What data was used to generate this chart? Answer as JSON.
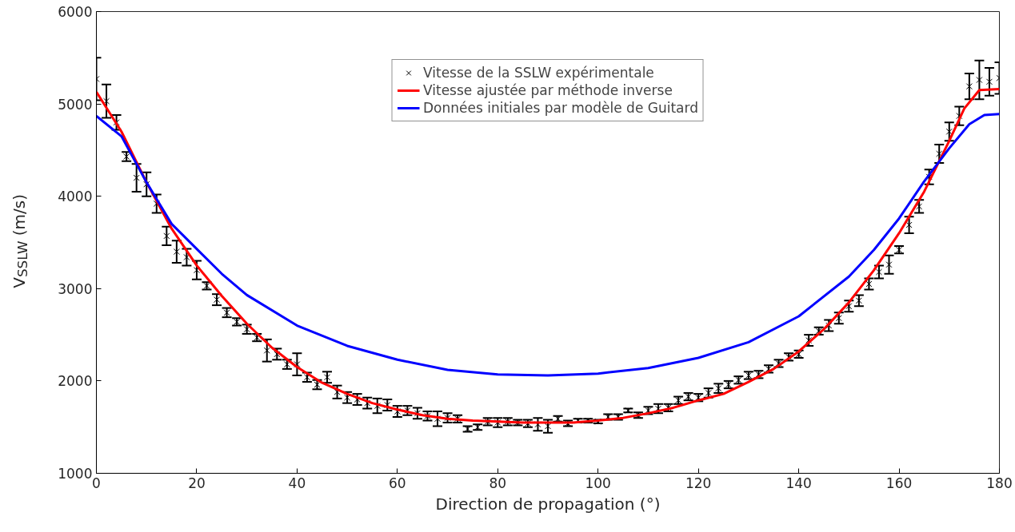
{
  "chart_data": {
    "type": "scatter",
    "xlabel": "Direction de propagation (°)",
    "ylabel": "V$_{SSLW}$ (m/s)",
    "xlim": [
      0,
      180
    ],
    "ylim": [
      1000,
      6000
    ],
    "xticks": [
      0,
      20,
      40,
      60,
      80,
      100,
      120,
      140,
      160,
      180
    ],
    "yticks": [
      1000,
      2000,
      3000,
      4000,
      5000,
      6000
    ],
    "grid": false,
    "legend": "top",
    "series": [
      {
        "name": "Vitesse de la SSLW expérimentale",
        "color": "#000000",
        "marker": "cross",
        "x": [
          0,
          2,
          4,
          6,
          8,
          10,
          12,
          14,
          16,
          18,
          20,
          22,
          24,
          26,
          28,
          30,
          32,
          34,
          36,
          38,
          40,
          42,
          44,
          46,
          48,
          50,
          52,
          54,
          56,
          58,
          60,
          62,
          64,
          66,
          68,
          70,
          72,
          74,
          76,
          78,
          80,
          82,
          84,
          86,
          88,
          90,
          92,
          94,
          96,
          98,
          100,
          102,
          104,
          106,
          108,
          110,
          112,
          114,
          116,
          118,
          120,
          122,
          124,
          126,
          128,
          130,
          132,
          134,
          136,
          138,
          140,
          142,
          144,
          146,
          148,
          150,
          152,
          154,
          156,
          158,
          160,
          162,
          164,
          166,
          168,
          170,
          172,
          174,
          176,
          178,
          180
        ],
        "values": [
          5270,
          5030,
          4800,
          4430,
          4200,
          4130,
          3920,
          3570,
          3400,
          3340,
          3200,
          3030,
          2880,
          2740,
          2640,
          2560,
          2470,
          2330,
          2290,
          2180,
          2180,
          2040,
          1960,
          2040,
          1880,
          1820,
          1800,
          1760,
          1730,
          1740,
          1670,
          1680,
          1650,
          1620,
          1590,
          1600,
          1590,
          1480,
          1500,
          1560,
          1550,
          1560,
          1550,
          1540,
          1530,
          1510,
          1590,
          1540,
          1570,
          1570,
          1560,
          1610,
          1610,
          1680,
          1630,
          1680,
          1700,
          1710,
          1790,
          1830,
          1820,
          1870,
          1920,
          1960,
          2010,
          2060,
          2070,
          2130,
          2190,
          2260,
          2290,
          2440,
          2540,
          2600,
          2680,
          2810,
          2870,
          3050,
          3180,
          3260,
          3420,
          3690,
          3890,
          4210,
          4460,
          4700,
          4870,
          5190,
          5260,
          5240,
          5280
        ],
        "errors": [
          230,
          180,
          80,
          50,
          150,
          130,
          100,
          100,
          120,
          90,
          100,
          40,
          60,
          50,
          40,
          50,
          40,
          120,
          60,
          50,
          120,
          50,
          50,
          60,
          70,
          60,
          60,
          60,
          80,
          60,
          60,
          50,
          60,
          50,
          80,
          50,
          40,
          30,
          30,
          40,
          50,
          40,
          30,
          40,
          70,
          70,
          30,
          30,
          20,
          20,
          20,
          30,
          30,
          20,
          30,
          40,
          50,
          40,
          40,
          40,
          40,
          50,
          50,
          40,
          40,
          40,
          40,
          40,
          40,
          40,
          40,
          60,
          40,
          60,
          60,
          60,
          60,
          60,
          70,
          100,
          40,
          90,
          70,
          80,
          100,
          100,
          100,
          140,
          210,
          150,
          170
        ]
      },
      {
        "name": "Vitesse ajustée par méthode inverse",
        "type": "line",
        "color": "#ff0000",
        "line_style": "solid",
        "x": [
          0,
          5,
          10,
          15,
          20,
          25,
          30,
          35,
          40,
          45,
          50,
          55,
          60,
          65,
          70,
          75,
          80,
          85,
          90,
          95,
          100,
          105,
          110,
          115,
          120,
          125,
          130,
          135,
          140,
          145,
          150,
          155,
          160,
          165,
          170,
          173,
          176,
          180
        ],
        "values": [
          5130,
          4700,
          4150,
          3650,
          3250,
          2920,
          2620,
          2360,
          2150,
          1980,
          1860,
          1760,
          1690,
          1630,
          1590,
          1570,
          1560,
          1550,
          1550,
          1550,
          1570,
          1600,
          1650,
          1710,
          1790,
          1860,
          1990,
          2130,
          2320,
          2560,
          2850,
          3200,
          3600,
          4050,
          4600,
          4950,
          5150,
          5160
        ]
      },
      {
        "name": "Données initiales par modèle de Guitard",
        "type": "line",
        "color": "#0000ff",
        "line_style": "solid",
        "x": [
          0,
          5,
          10,
          15,
          20,
          25,
          30,
          40,
          50,
          60,
          70,
          80,
          90,
          100,
          110,
          120,
          130,
          140,
          150,
          155,
          160,
          165,
          170,
          174,
          177,
          180
        ],
        "values": [
          4870,
          4650,
          4150,
          3700,
          3430,
          3160,
          2930,
          2600,
          2380,
          2230,
          2120,
          2070,
          2060,
          2080,
          2140,
          2250,
          2420,
          2700,
          3130,
          3420,
          3760,
          4160,
          4520,
          4780,
          4880,
          4890
        ]
      }
    ]
  }
}
